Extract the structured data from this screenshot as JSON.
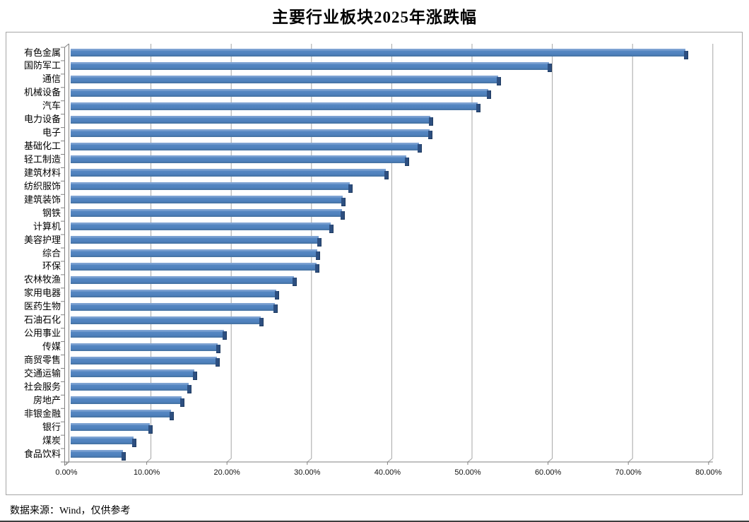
{
  "page": {
    "footer": "数据来源：Wind，仅供参考"
  },
  "chart_data": {
    "type": "bar",
    "orientation": "horizontal",
    "title": "主要行业板块2025年涨跌幅",
    "categories": [
      "有色金属",
      "国防军工",
      "通信",
      "机械设备",
      "汽车",
      "电力设备",
      "电子",
      "基础化工",
      "轻工制造",
      "建筑材料",
      "纺织服饰",
      "建筑装饰",
      "钢铁",
      "计算机",
      "美容护理",
      "综合",
      "环保",
      "农林牧渔",
      "家用电器",
      "医药生物",
      "石油石化",
      "公用事业",
      "传媒",
      "商贸零售",
      "交通运输",
      "社会服务",
      "房地产",
      "非银金融",
      "银行",
      "煤炭",
      "食品饮料"
    ],
    "values": [
      76.6,
      59.6,
      53.3,
      52.0,
      50.7,
      44.8,
      44.7,
      43.4,
      41.8,
      39.3,
      34.8,
      33.9,
      33.8,
      32.4,
      30.9,
      30.7,
      30.6,
      27.8,
      25.6,
      25.4,
      23.7,
      19.1,
      18.3,
      18.2,
      15.4,
      14.7,
      13.8,
      12.5,
      9.9,
      7.8,
      6.5
    ],
    "value_unit": "%",
    "x_ticks": [
      "0.00%",
      "10.00%",
      "20.00%",
      "30.00%",
      "40.00%",
      "50.00%",
      "60.00%",
      "70.00%",
      "80.00%"
    ],
    "xlim": [
      0,
      80
    ],
    "grid": true,
    "legend": false,
    "style": "3d-bar",
    "colors": {
      "bar": "#4f81bd",
      "bar_highlight": "#7da2d2",
      "bar_side": "#2d4f80",
      "bar_edge": "#1f3a5f",
      "gridline": "#a6a6a6",
      "axis": "#808080"
    }
  }
}
